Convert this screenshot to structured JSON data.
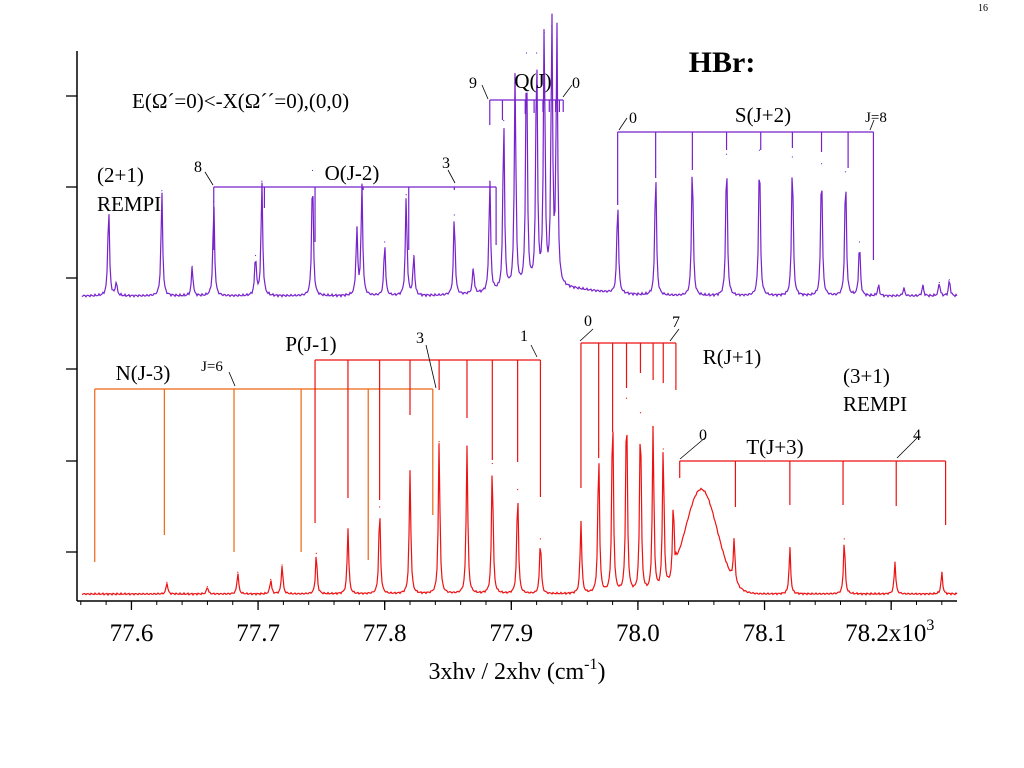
{
  "slide_number": "16",
  "chart_data": {
    "type": "line",
    "title": "HBr:",
    "xlabel": "3xhν / 2xhν (cm-1)",
    "ylabel": "",
    "xlim": [
      77.557,
      78.252
    ],
    "x_ticks": [
      "77.6",
      "77.7",
      "77.8",
      "77.9",
      "78.0",
      "78.1",
      "78.2x103"
    ],
    "y_axis_tick_count": 6,
    "grid": false,
    "annotations": {
      "transition": "E(Ω´=0)<-X(Ω´´=0),(0,0)",
      "upper_method": [
        "(2+1)",
        "REMPI"
      ],
      "lower_method": [
        "(3+1)",
        "REMPI"
      ]
    },
    "series": [
      {
        "color": "#7722cc",
        "peaks": [
          {
            "x": 77.582,
            "h": 0.68
          },
          {
            "x": 77.588,
            "h": 0.1
          },
          {
            "x": 77.624,
            "h": 0.78
          },
          {
            "x": 77.648,
            "h": 0.22
          },
          {
            "x": 77.665,
            "h": 0.7
          },
          {
            "x": 77.698,
            "h": 0.3
          },
          {
            "x": 77.703,
            "h": 0.85
          },
          {
            "x": 77.743,
            "h": 0.93
          },
          {
            "x": 77.778,
            "h": 0.5
          },
          {
            "x": 77.782,
            "h": 0.82
          },
          {
            "x": 77.8,
            "h": 0.4
          },
          {
            "x": 77.817,
            "h": 0.75
          },
          {
            "x": 77.823,
            "h": 0.3
          },
          {
            "x": 77.855,
            "h": 0.6
          },
          {
            "x": 77.87,
            "h": 0.2
          },
          {
            "x": 77.883,
            "h": 0.85
          },
          {
            "x": 77.894,
            "h": 1.3
          },
          {
            "x": 77.903,
            "h": 1.6
          },
          {
            "x": 77.912,
            "h": 1.8
          },
          {
            "x": 77.92,
            "h": 1.8
          },
          {
            "x": 77.926,
            "h": 1.95
          },
          {
            "x": 77.932,
            "h": 2.0
          },
          {
            "x": 77.936,
            "h": 1.9
          },
          {
            "x": 77.984,
            "h": 0.7
          },
          {
            "x": 78.014,
            "h": 0.95
          },
          {
            "x": 78.043,
            "h": 1.02
          },
          {
            "x": 78.07,
            "h": 1.05
          },
          {
            "x": 78.096,
            "h": 1.08
          },
          {
            "x": 78.122,
            "h": 1.03
          },
          {
            "x": 78.145,
            "h": 0.98
          },
          {
            "x": 78.164,
            "h": 0.92
          },
          {
            "x": 78.175,
            "h": 0.4
          },
          {
            "x": 78.19,
            "h": 0.08
          },
          {
            "x": 78.21,
            "h": 0.06
          },
          {
            "x": 78.225,
            "h": 0.08
          },
          {
            "x": 78.238,
            "h": 0.1
          },
          {
            "x": 78.246,
            "h": 0.12
          }
        ]
      },
      {
        "color": "#ee1111",
        "peaks": [
          {
            "x": 77.628,
            "h": 0.08
          },
          {
            "x": 77.66,
            "h": 0.05
          },
          {
            "x": 77.684,
            "h": 0.15
          },
          {
            "x": 77.71,
            "h": 0.1
          },
          {
            "x": 77.719,
            "h": 0.2
          },
          {
            "x": 77.746,
            "h": 0.28
          },
          {
            "x": 77.771,
            "h": 0.45
          },
          {
            "x": 77.796,
            "h": 0.6
          },
          {
            "x": 77.82,
            "h": 0.85
          },
          {
            "x": 77.843,
            "h": 1.05
          },
          {
            "x": 77.865,
            "h": 1.02
          },
          {
            "x": 77.885,
            "h": 0.9
          },
          {
            "x": 77.905,
            "h": 0.72
          },
          {
            "x": 77.923,
            "h": 0.38
          },
          {
            "x": 77.955,
            "h": 0.5
          },
          {
            "x": 77.969,
            "h": 1.0
          },
          {
            "x": 77.98,
            "h": 1.3
          },
          {
            "x": 77.991,
            "h": 1.35
          },
          {
            "x": 78.002,
            "h": 1.25
          },
          {
            "x": 78.012,
            "h": 1.15
          },
          {
            "x": 78.02,
            "h": 1.0
          },
          {
            "x": 78.028,
            "h": 0.55
          },
          {
            "x": 78.076,
            "h": 0.3
          },
          {
            "x": 78.12,
            "h": 0.32
          },
          {
            "x": 78.163,
            "h": 0.38
          },
          {
            "x": 78.203,
            "h": 0.22
          },
          {
            "x": 78.24,
            "h": 0.15
          }
        ]
      }
    ],
    "branches": [
      {
        "id": "O",
        "label": "O(J-2)",
        "color": "#7722cc",
        "bar_x": [
          77.665,
          77.888
        ],
        "ticks": [
          {
            "x": 77.665,
            "to": 77.665
          },
          {
            "x": 77.705,
            "to": 77.705
          },
          {
            "x": 77.745,
            "to": 77.745
          },
          {
            "x": 77.783,
            "to": 77.783
          },
          {
            "x": 77.819,
            "to": 77.819
          },
          {
            "x": 77.855,
            "to": 77.855
          },
          {
            "x": 77.888,
            "to": 77.888
          }
        ],
        "end_labels": [
          {
            "x": 77.66,
            "text": "8"
          },
          {
            "x": 77.852,
            "text": "3"
          }
        ]
      },
      {
        "id": "Q",
        "label": "Q(J)",
        "color": "#7722cc",
        "bar_x": [
          77.883,
          77.941
        ],
        "ticks": [
          {
            "x": 77.883,
            "to": 77.883
          },
          {
            "x": 77.893,
            "to": 77.893
          },
          {
            "x": 77.903,
            "to": 77.903
          },
          {
            "x": 77.911,
            "to": 77.911
          },
          {
            "x": 77.918,
            "to": 77.918
          },
          {
            "x": 77.925,
            "to": 77.925
          },
          {
            "x": 77.93,
            "to": 77.93
          },
          {
            "x": 77.935,
            "to": 77.935
          },
          {
            "x": 77.938,
            "to": 77.938
          },
          {
            "x": 77.941,
            "to": 77.941
          }
        ],
        "end_labels": [
          {
            "x": 77.875,
            "text": "9"
          },
          {
            "x": 77.94,
            "text": "0"
          }
        ]
      },
      {
        "id": "S",
        "label": "S(J+2)",
        "color": "#7722cc",
        "bar_x": [
          77.984,
          78.186
        ],
        "ticks": [
          {
            "x": 77.984,
            "to": 77.984
          },
          {
            "x": 78.014,
            "to": 78.014
          },
          {
            "x": 78.043,
            "to": 78.043
          },
          {
            "x": 78.07,
            "to": 78.07
          },
          {
            "x": 78.097,
            "to": 78.097
          },
          {
            "x": 78.122,
            "to": 78.122
          },
          {
            "x": 78.145,
            "to": 78.145
          },
          {
            "x": 78.166,
            "to": 78.166
          },
          {
            "x": 78.186,
            "to": 78.186
          }
        ],
        "end_labels": [
          {
            "x": 77.99,
            "text": "0"
          },
          {
            "x": 78.182,
            "text": "J=8"
          }
        ]
      },
      {
        "id": "N",
        "label": "N(J-3)",
        "color": "#ee6611",
        "bar_x": [
          77.571,
          77.838
        ],
        "ticks": [
          {
            "x": 77.571,
            "to": 77.571
          },
          {
            "x": 77.626,
            "to": 77.626
          },
          {
            "x": 77.681,
            "to": 77.681
          },
          {
            "x": 77.734,
            "to": 77.734
          },
          {
            "x": 77.787,
            "to": 77.787
          },
          {
            "x": 77.838,
            "to": 77.838
          }
        ],
        "end_labels": [
          {
            "x": 77.674,
            "text": "J=6"
          }
        ]
      },
      {
        "id": "P",
        "label": "P(J-1)",
        "color": "#ee1111",
        "bar_x": [
          77.745,
          77.923
        ],
        "ticks": [
          {
            "x": 77.745,
            "to": 77.745
          },
          {
            "x": 77.771,
            "to": 77.771
          },
          {
            "x": 77.796,
            "to": 77.796
          },
          {
            "x": 77.82,
            "to": 77.82
          },
          {
            "x": 77.843,
            "to": 77.843
          },
          {
            "x": 77.865,
            "to": 77.865
          },
          {
            "x": 77.885,
            "to": 77.885
          },
          {
            "x": 77.905,
            "to": 77.905
          },
          {
            "x": 77.923,
            "to": 77.923
          }
        ],
        "end_labels": [
          {
            "x": 77.83,
            "text": "3"
          },
          {
            "x": 77.913,
            "text": "1"
          }
        ]
      },
      {
        "id": "R",
        "label": "R(J+1)",
        "color": "#ee1111",
        "bar_x": [
          77.955,
          78.03
        ],
        "ticks": [
          {
            "x": 77.955,
            "to": 77.955
          },
          {
            "x": 77.969,
            "to": 77.969
          },
          {
            "x": 77.98,
            "to": 77.98
          },
          {
            "x": 77.991,
            "to": 77.991
          },
          {
            "x": 78.002,
            "to": 78.002
          },
          {
            "x": 78.012,
            "to": 78.012
          },
          {
            "x": 78.02,
            "to": 78.02
          },
          {
            "x": 78.03,
            "to": 78.03
          }
        ],
        "end_labels": [
          {
            "x": 77.967,
            "text": "0"
          },
          {
            "x": 78.024,
            "text": "7"
          }
        ]
      },
      {
        "id": "T",
        "label": "T(J+3)",
        "color": "#ee1111",
        "bar_x": [
          78.033,
          78.243
        ],
        "ticks": [
          {
            "x": 78.033,
            "to": 78.033
          },
          {
            "x": 78.077,
            "to": 78.077
          },
          {
            "x": 78.12,
            "to": 78.12
          },
          {
            "x": 78.162,
            "to": 78.162
          },
          {
            "x": 78.204,
            "to": 78.204
          },
          {
            "x": 78.243,
            "to": 78.243
          }
        ],
        "end_labels": [
          {
            "x": 78.041,
            "text": "0"
          },
          {
            "x": 78.222,
            "text": "4"
          }
        ]
      }
    ]
  }
}
